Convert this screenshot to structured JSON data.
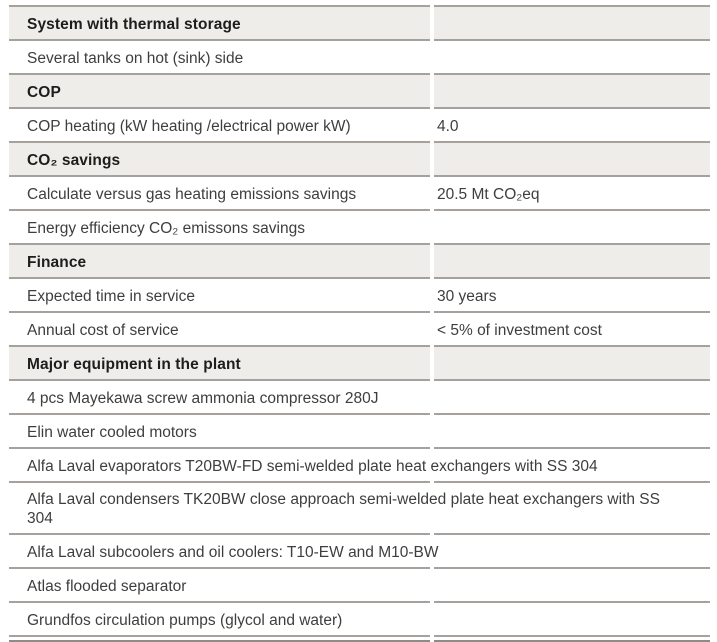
{
  "doc": {
    "rows": [
      {
        "label": "System with thermal storage",
        "kind": "section-header"
      },
      {
        "label": "Several tanks on hot (sink) side",
        "kind": "spec"
      },
      {
        "label": "COP",
        "kind": "section-header"
      },
      {
        "label": "COP heating (kW heating /electrical power kW)",
        "value": "4.0",
        "kind": "spec"
      },
      {
        "label": "CO₂ savings",
        "kind": "section-header"
      },
      {
        "label": "Calculate versus gas heating emissions savings",
        "value": "20.5 Mt CO₂eq",
        "kind": "spec"
      },
      {
        "label": "Energy efficiency CO₂ emissons savings",
        "kind": "spec"
      },
      {
        "label": "Finance",
        "kind": "section-header"
      },
      {
        "label": "Expected time in service",
        "value": "30 years",
        "kind": "spec"
      },
      {
        "label": "Annual cost of service",
        "value": "< 5% of investment cost",
        "kind": "spec"
      },
      {
        "label": "Major equipment in the plant",
        "kind": "section-header"
      },
      {
        "label": "4 pcs Mayekawa screw ammonia compressor 280J",
        "kind": "spec"
      },
      {
        "label": "Elin water cooled motors",
        "kind": "spec"
      },
      {
        "label": "Alfa Laval evaporators T20BW-FD semi-welded plate heat exchangers with SS 304",
        "kind": "spec"
      },
      {
        "label": "Alfa Laval condensers TK20BW close approach semi-welded plate heat exchangers with SS 304",
        "kind": "spec"
      },
      {
        "label": "Alfa Laval subcoolers and oil coolers: T10-EW and M10-BW",
        "kind": "spec"
      },
      {
        "label": "Atlas flooded separator",
        "kind": "spec"
      },
      {
        "label": "Grundfos circulation pumps (glycol and water)",
        "kind": "spec"
      }
    ],
    "colors": {
      "section_header_bg": "#eeedea",
      "rule": "#a6a19d",
      "body_text": "#3e3e3c",
      "header_text": "#1d1d1b",
      "page_bg": "#ffffff"
    }
  }
}
